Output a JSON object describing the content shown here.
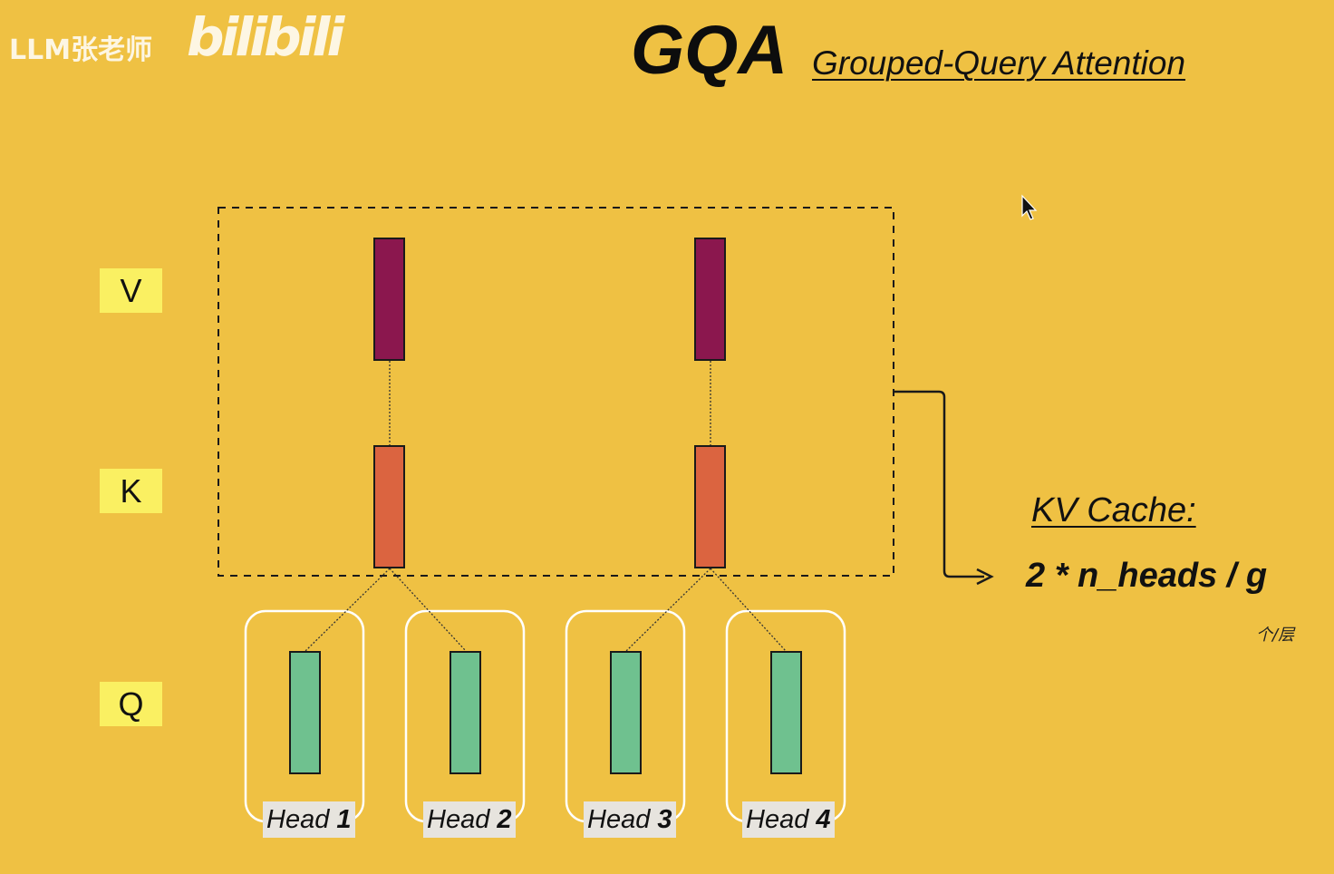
{
  "watermark": {
    "channel": "LLM张老师",
    "site": "bilibili"
  },
  "header": {
    "title": "GQA",
    "subtitle": "Grouped-Query Attention"
  },
  "rows": {
    "v": "V",
    "k": "K",
    "q": "Q"
  },
  "heads": [
    {
      "prefix": "Head",
      "number": "1"
    },
    {
      "prefix": "Head",
      "number": "2"
    },
    {
      "prefix": "Head",
      "number": "3"
    },
    {
      "prefix": "Head",
      "number": "4"
    }
  ],
  "kv_cache": {
    "title": "KV Cache:",
    "formula": "2 * n_heads / g",
    "unit": "个/层"
  },
  "colors": {
    "background": "#EFC143",
    "value_block": "#8B174E",
    "key_block": "#DB6440",
    "query_block": "#6FC18F",
    "row_label": "#FAF062",
    "head_outline": "#FFFFFF",
    "head_label_bg": "#E7E4DE"
  },
  "icons": {
    "cursor": "mouse-pointer-icon"
  }
}
